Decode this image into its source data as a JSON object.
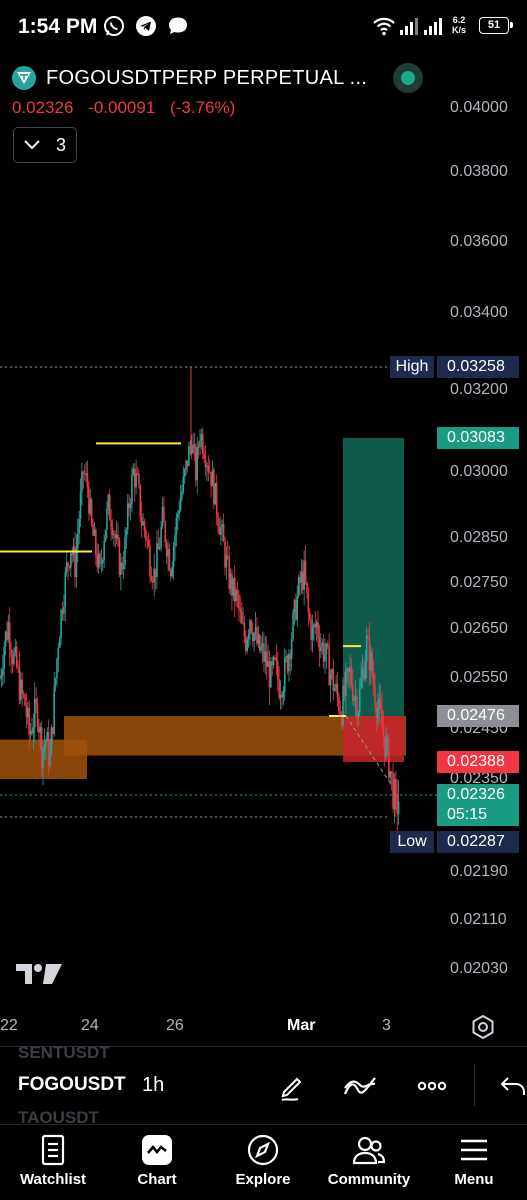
{
  "status_bar": {
    "time": "1:54 PM",
    "net_speed_value": "6.2",
    "net_speed_unit": "K/s",
    "battery": "51"
  },
  "symbol": {
    "title": "FOGOUSDTPERP PERPETUAL ...",
    "last_price": "0.02326",
    "change": "-0.00091",
    "change_pct": "(-3.76%)",
    "indicator_count": "3"
  },
  "price_axis": [
    "0.04000",
    "0.03800",
    "0.03600",
    "0.03400",
    "0.03200",
    "0.03000",
    "0.02850",
    "0.02750",
    "0.02650",
    "0.02550",
    "0.02450",
    "0.02350",
    "0.02190",
    "0.02110",
    "0.02030"
  ],
  "badges": {
    "high_label": "High",
    "high_value": "0.03258",
    "target_value": "0.03083",
    "entry_value": "0.02476",
    "stop_value": "0.02388",
    "current_value": "0.02326",
    "countdown": "05:15",
    "low_label": "Low",
    "low_value": "0.02287"
  },
  "time_axis": [
    "22",
    "24",
    "26",
    "Mar",
    "3"
  ],
  "toolbar": {
    "ghost_prev": "SENTUSDT",
    "symbol": "FOGOUSDT",
    "ghost_next": "TAOUSDT",
    "interval": "1h"
  },
  "nav": {
    "watchlist": "Watchlist",
    "chart": "Chart",
    "explore": "Explore",
    "community": "Community",
    "menu": "Menu"
  },
  "colors": {
    "up": "#26a69a",
    "down": "#f23645",
    "horizontal_line": "#ffeb3b",
    "zone": "#a0520c",
    "target_zone": "#0f5f4f",
    "stop_zone": "#c8232c"
  },
  "chart_data": {
    "type": "candlestick",
    "interval": "1h",
    "x_ticks": [
      "22",
      "24",
      "26",
      "Mar",
      "3"
    ],
    "y_ticks": [
      0.04,
      0.038,
      0.036,
      0.034,
      0.032,
      0.03,
      0.0285,
      0.0275,
      0.0265,
      0.0255,
      0.0245,
      0.0235,
      0.0219,
      0.0211,
      0.0203
    ],
    "ylim": [
      0.0199,
      0.0404
    ],
    "session_high": 0.03258,
    "session_low": 0.02287,
    "last_price": 0.02326,
    "position": {
      "side": "long",
      "target": 0.03083,
      "entry": 0.02476,
      "stop": 0.02388
    },
    "horizontal_levels": [
      0.0282,
      0.0307,
      0.02615,
      0.02476
    ],
    "close_path": [
      0.0255,
      0.0262,
      0.0266,
      0.026,
      0.0257,
      0.0252,
      0.025,
      0.0244,
      0.0247,
      0.0249,
      0.0241,
      0.0243,
      0.0239,
      0.0251,
      0.0263,
      0.0271,
      0.0278,
      0.0283,
      0.0279,
      0.029,
      0.03,
      0.0297,
      0.0287,
      0.0282,
      0.0277,
      0.0286,
      0.0292,
      0.0289,
      0.0283,
      0.0278,
      0.0283,
      0.0293,
      0.03,
      0.0297,
      0.0289,
      0.0286,
      0.028,
      0.0277,
      0.0282,
      0.0289,
      0.0284,
      0.0279,
      0.0286,
      0.0293,
      0.0297,
      0.0303,
      0.0308,
      0.03,
      0.031,
      0.0306,
      0.0302,
      0.0298,
      0.0292,
      0.0287,
      0.0281,
      0.0276,
      0.0273,
      0.0271,
      0.0265,
      0.0263,
      0.0268,
      0.0264,
      0.0261,
      0.026,
      0.0258,
      0.0255,
      0.0257,
      0.0254,
      0.0255,
      0.0259,
      0.0264,
      0.027,
      0.0275,
      0.0277,
      0.0268,
      0.0264,
      0.0266,
      0.0262,
      0.026,
      0.0257,
      0.0254,
      0.0251,
      0.0249,
      0.0253,
      0.0256,
      0.0252,
      0.025,
      0.0256,
      0.0262,
      0.0258,
      0.0252,
      0.0248,
      0.0244,
      0.024,
      0.0235,
      0.023,
      0.0233
    ]
  }
}
